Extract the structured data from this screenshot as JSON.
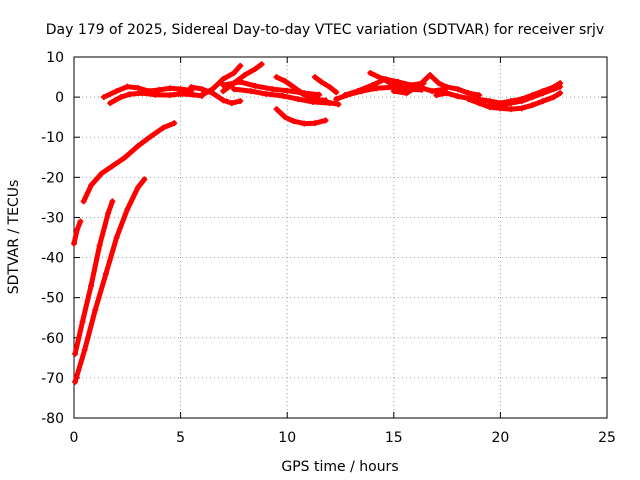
{
  "chart_data": {
    "type": "scatter",
    "title": "Day 179 of 2025, Sidereal Day-to-day VTEC variation (SDTVAR) for receiver srjv",
    "xlabel": "GPS time / hours",
    "ylabel": "SDTVAR / TECUs",
    "xlim": [
      0,
      25
    ],
    "ylim": [
      -80,
      10
    ],
    "xticks": [
      0,
      5,
      10,
      15,
      20,
      25
    ],
    "yticks": [
      -80,
      -70,
      -60,
      -50,
      -40,
      -30,
      -20,
      -10,
      0,
      10
    ],
    "grid": true,
    "legend": "none",
    "series_color": "#ff0000",
    "series": [
      {
        "name": "arc-a",
        "points": [
          [
            0.0,
            -36.5
          ],
          [
            0.15,
            -33
          ],
          [
            0.3,
            -31
          ]
        ]
      },
      {
        "name": "arc-b",
        "points": [
          [
            0.05,
            -64
          ],
          [
            0.4,
            -56
          ],
          [
            0.8,
            -47
          ],
          [
            1.2,
            -37
          ],
          [
            1.6,
            -29
          ],
          [
            1.8,
            -26
          ]
        ]
      },
      {
        "name": "arc-c",
        "points": [
          [
            0.05,
            -71
          ],
          [
            0.5,
            -63
          ],
          [
            1.0,
            -53
          ],
          [
            1.5,
            -44
          ],
          [
            2.0,
            -35
          ],
          [
            2.5,
            -28
          ],
          [
            3.0,
            -22.5
          ],
          [
            3.3,
            -20.5
          ]
        ]
      },
      {
        "name": "arc-d",
        "points": [
          [
            0.45,
            -26
          ],
          [
            0.8,
            -22
          ],
          [
            1.3,
            -19
          ],
          [
            1.8,
            -17.2
          ],
          [
            2.4,
            -15
          ],
          [
            3.0,
            -12.2
          ],
          [
            3.6,
            -9.8
          ],
          [
            4.2,
            -7.6
          ],
          [
            4.7,
            -6.5
          ]
        ]
      },
      {
        "name": "arc-e",
        "points": [
          [
            1.4,
            0
          ],
          [
            2.0,
            1.5
          ],
          [
            2.5,
            2.6
          ],
          [
            3.0,
            2.3
          ],
          [
            3.5,
            1.5
          ],
          [
            4.0,
            1.8
          ],
          [
            4.5,
            2.2
          ],
          [
            5.0,
            2.0
          ],
          [
            5.5,
            1.7
          ]
        ]
      },
      {
        "name": "arc-f",
        "points": [
          [
            1.7,
            -1.5
          ],
          [
            2.2,
            0
          ],
          [
            2.6,
            0.7
          ],
          [
            3.2,
            1.0
          ],
          [
            3.8,
            0.6
          ],
          [
            4.5,
            0.5
          ],
          [
            5.0,
            0.8
          ],
          [
            5.6,
            0.6
          ],
          [
            6.0,
            0.3
          ]
        ]
      },
      {
        "name": "arc-g",
        "points": [
          [
            5.5,
            2.5
          ],
          [
            6.0,
            2.0
          ],
          [
            6.5,
            1.0
          ],
          [
            7.0,
            -0.8
          ],
          [
            7.4,
            -1.5
          ],
          [
            7.8,
            -1.0
          ]
        ]
      },
      {
        "name": "arc-h",
        "points": [
          [
            6.0,
            0.5
          ],
          [
            6.5,
            2.0
          ],
          [
            7.0,
            4.5
          ],
          [
            7.5,
            6.0
          ],
          [
            7.8,
            7.8
          ]
        ]
      },
      {
        "name": "arc-i",
        "points": [
          [
            7.0,
            1.5
          ],
          [
            7.5,
            3.5
          ],
          [
            8.0,
            5.5
          ],
          [
            8.5,
            7.0
          ],
          [
            8.8,
            8.2
          ]
        ]
      },
      {
        "name": "arc-j",
        "points": [
          [
            7.0,
            3.0
          ],
          [
            7.8,
            3.8
          ],
          [
            8.5,
            2.8
          ],
          [
            9.3,
            2.0
          ],
          [
            10.0,
            1.6
          ],
          [
            10.8,
            1.0
          ],
          [
            11.5,
            0.6
          ]
        ]
      },
      {
        "name": "arc-k",
        "points": [
          [
            7.5,
            2.0
          ],
          [
            8.3,
            1.5
          ],
          [
            9.0,
            0.8
          ],
          [
            9.8,
            0.3
          ],
          [
            10.5,
            -0.5
          ],
          [
            11.2,
            -1.2
          ],
          [
            12.0,
            -1.5
          ]
        ]
      },
      {
        "name": "arc-l",
        "points": [
          [
            9.5,
            5.0
          ],
          [
            9.9,
            4.0
          ],
          [
            10.3,
            2.5
          ],
          [
            10.7,
            1.0
          ],
          [
            11.2,
            -0.2
          ],
          [
            11.8,
            -1.2
          ],
          [
            12.4,
            -1.8
          ]
        ]
      },
      {
        "name": "arc-m",
        "points": [
          [
            10.3,
            2.5
          ],
          [
            10.6,
            1.2
          ],
          [
            11.0,
            0.0
          ],
          [
            11.4,
            -0.7
          ],
          [
            11.8,
            -0.8
          ]
        ]
      },
      {
        "name": "arc-n",
        "points": [
          [
            11.3,
            5.0
          ],
          [
            11.6,
            3.8
          ],
          [
            12.0,
            2.5
          ],
          [
            12.3,
            1.2
          ]
        ]
      },
      {
        "name": "arc-o",
        "points": [
          [
            9.5,
            -3.0
          ],
          [
            9.9,
            -5.0
          ],
          [
            10.3,
            -6.0
          ],
          [
            10.8,
            -6.6
          ],
          [
            11.3,
            -6.5
          ],
          [
            11.8,
            -5.8
          ]
        ]
      },
      {
        "name": "arc-p",
        "points": [
          [
            12.3,
            -0.5
          ],
          [
            12.8,
            0.5
          ],
          [
            13.5,
            1.5
          ],
          [
            14.2,
            2.2
          ],
          [
            15.0,
            2.5
          ],
          [
            15.7,
            2.0
          ],
          [
            16.3,
            1.8
          ]
        ]
      },
      {
        "name": "arc-q",
        "points": [
          [
            12.7,
            0.5
          ],
          [
            13.3,
            1.5
          ],
          [
            14.0,
            3.0
          ],
          [
            14.6,
            4.5
          ],
          [
            15.2,
            3.8
          ],
          [
            15.8,
            3.0
          ],
          [
            16.4,
            3.5
          ]
        ]
      },
      {
        "name": "arc-r",
        "points": [
          [
            13.9,
            6.0
          ],
          [
            14.5,
            4.5
          ],
          [
            15.0,
            3.0
          ],
          [
            15.6,
            2.0
          ],
          [
            16.2,
            2.5
          ],
          [
            16.8,
            1.5
          ],
          [
            17.4,
            2.0
          ]
        ]
      },
      {
        "name": "arc-s",
        "points": [
          [
            15.0,
            1.5
          ],
          [
            15.6,
            1.0
          ],
          [
            16.2,
            3.0
          ],
          [
            16.7,
            5.5
          ],
          [
            17.1,
            3.5
          ],
          [
            17.5,
            2.5
          ],
          [
            18.0,
            2.0
          ],
          [
            18.5,
            1.0
          ],
          [
            19.0,
            0.5
          ]
        ]
      },
      {
        "name": "arc-t",
        "points": [
          [
            17.0,
            0.5
          ],
          [
            17.5,
            1.0
          ],
          [
            18.0,
            0.2
          ],
          [
            18.5,
            -0.3
          ],
          [
            19.0,
            -0.6
          ],
          [
            19.5,
            -1.0
          ],
          [
            20.0,
            -1.5
          ],
          [
            20.5,
            -1.0
          ],
          [
            21.0,
            -0.5
          ],
          [
            21.5,
            0.5
          ],
          [
            22.0,
            1.5
          ],
          [
            22.5,
            2.5
          ],
          [
            22.8,
            3.5
          ]
        ]
      },
      {
        "name": "arc-u",
        "points": [
          [
            18.5,
            -0.5
          ],
          [
            19.0,
            -1.5
          ],
          [
            19.5,
            -2.5
          ],
          [
            20.0,
            -2.8
          ],
          [
            20.5,
            -3.0
          ],
          [
            21.0,
            -2.8
          ],
          [
            21.5,
            -2.0
          ],
          [
            22.0,
            -1.0
          ],
          [
            22.5,
            0.0
          ],
          [
            22.8,
            1.0
          ]
        ]
      },
      {
        "name": "arc-v",
        "points": [
          [
            19.5,
            -2.0
          ],
          [
            20.0,
            -2.0
          ],
          [
            20.5,
            -1.5
          ],
          [
            21.0,
            -1.0
          ],
          [
            21.5,
            0.0
          ],
          [
            22.0,
            1.0
          ],
          [
            22.5,
            2.0
          ],
          [
            22.8,
            2.6
          ]
        ]
      }
    ]
  }
}
